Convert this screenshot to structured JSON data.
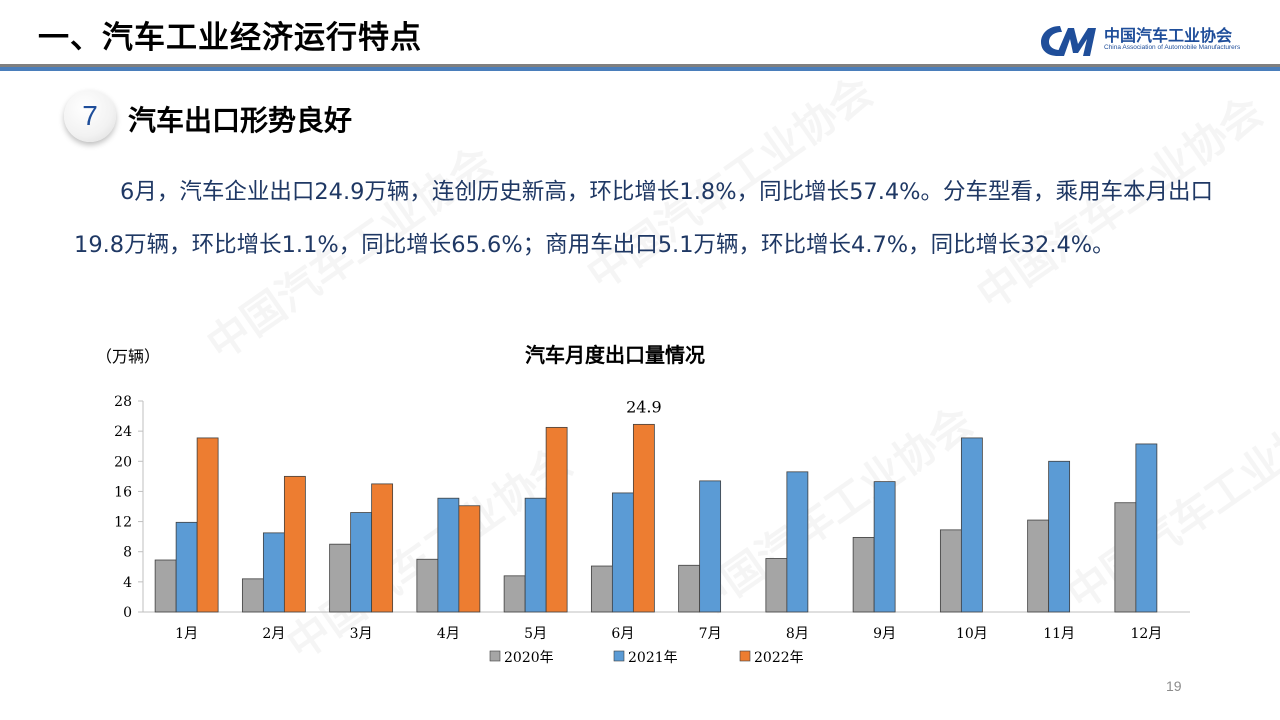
{
  "header": {
    "title": "一、汽车工业经济运行特点",
    "logo_cn": "中国汽车工业协会",
    "logo_en": "China Association of Automobile Manufacturers"
  },
  "section": {
    "number": "7",
    "title": "汽车出口形势良好"
  },
  "paragraph": "6月，汽车企业出口24.9万辆，连创历史新高，环比增长1.8%，同比增长57.4%。分车型看，乘用车本月出口19.8万辆，环比增长1.1%，同比增长65.6%；商用车出口5.1万辆，环比增长4.7%，同比增长32.4%。",
  "watermark": "中国汽车工业协会",
  "page_number": "19",
  "colors": {
    "header_blue": "#4a7ebb",
    "series_2020": "#a5a5a5",
    "series_2021": "#5b9bd5",
    "series_2022": "#ed7d31",
    "paragraph_text": "#1f3864"
  },
  "chart_data": {
    "type": "bar",
    "title": "汽车月度出口量情况",
    "unit_label": "（万辆）",
    "categories": [
      "1月",
      "2月",
      "3月",
      "4月",
      "5月",
      "6月",
      "7月",
      "8月",
      "9月",
      "10月",
      "11月",
      "12月"
    ],
    "series": [
      {
        "name": "2020年",
        "color": "#a5a5a5",
        "values": [
          6.9,
          4.4,
          9.0,
          7.0,
          4.8,
          6.1,
          6.2,
          7.1,
          9.9,
          10.9,
          12.2,
          14.5
        ]
      },
      {
        "name": "2021年",
        "color": "#5b9bd5",
        "values": [
          11.9,
          10.5,
          13.2,
          15.1,
          15.1,
          15.8,
          17.4,
          18.6,
          17.3,
          23.1,
          20.0,
          22.3
        ]
      },
      {
        "name": "2022年",
        "color": "#ed7d31",
        "values": [
          23.1,
          18.0,
          17.0,
          14.1,
          24.5,
          24.9,
          null,
          null,
          null,
          null,
          null,
          null
        ]
      }
    ],
    "data_labels": [
      {
        "series": "2022年",
        "category": "6月",
        "text": "24.9"
      }
    ],
    "ylim": [
      0,
      28
    ],
    "yticks": [
      0,
      4,
      8,
      12,
      16,
      20,
      24,
      28
    ],
    "legend_position": "bottom",
    "grid": false
  }
}
